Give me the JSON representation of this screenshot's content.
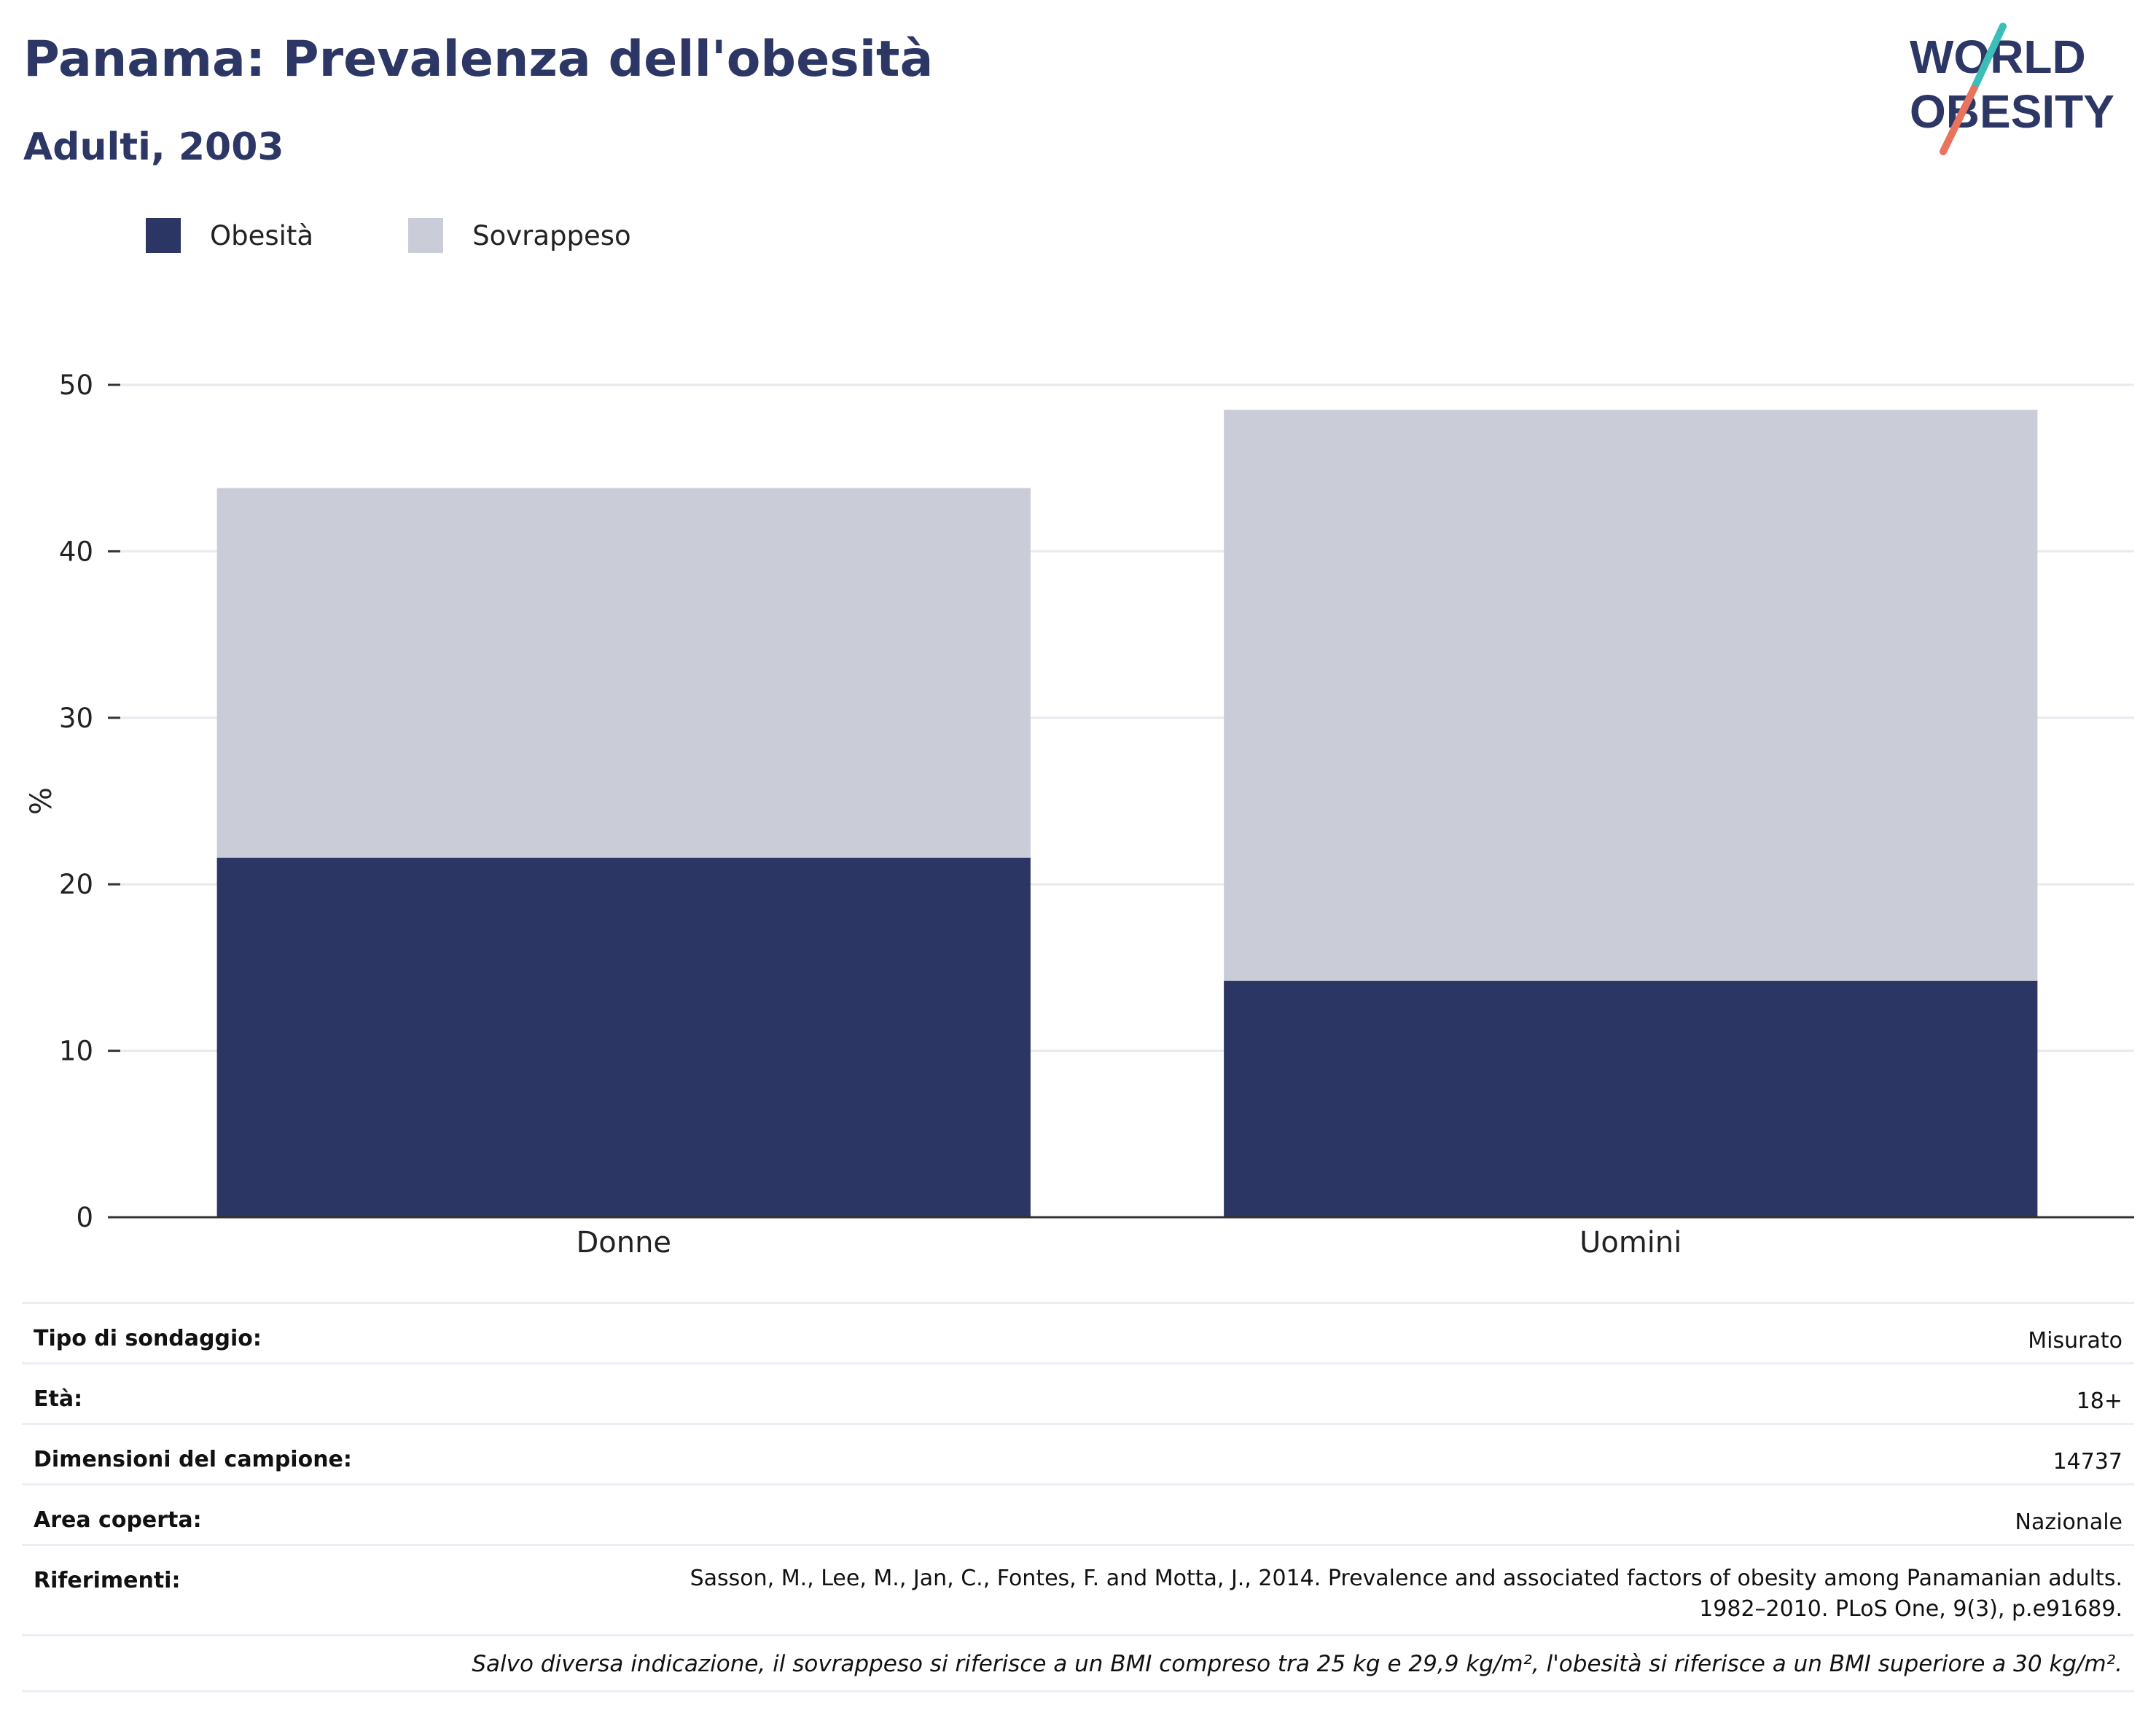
{
  "header": {
    "title": "Panama: Prevalenza dell'obesità",
    "subtitle": "Adulti, 2003"
  },
  "logo": {
    "line1": "WORLD",
    "line2": "OBESITY",
    "colors": [
      "#2d3766",
      "#3dbdb8",
      "#e8735f"
    ]
  },
  "legend": [
    {
      "label": "Obesità",
      "color": "#2b3664"
    },
    {
      "label": "Sovrappeso",
      "color": "#cacdd8"
    }
  ],
  "chart_data": {
    "type": "bar",
    "stacked": true,
    "categories": [
      "Donne",
      "Uomini"
    ],
    "series": [
      {
        "name": "Obesità",
        "values": [
          21.6,
          14.2
        ],
        "color": "#2b3664"
      },
      {
        "name": "Sovrappeso",
        "values": [
          22.2,
          34.3
        ],
        "color": "#cacdd8"
      }
    ],
    "ylabel": "%",
    "ylim": [
      0,
      50
    ],
    "yticks": [
      "0",
      "10",
      "20",
      "30",
      "40",
      "50"
    ],
    "grid": true,
    "legend_position": "top-left"
  },
  "info": {
    "survey_type": {
      "label": "Tipo di sondaggio:",
      "value": "Misurato"
    },
    "age": {
      "label": "Età:",
      "value": "18+"
    },
    "sample_size": {
      "label": "Dimensioni del campione:",
      "value": "14737"
    },
    "area": {
      "label": "Area coperta:",
      "value": "Nazionale"
    },
    "references": {
      "label": "Riferimenti:",
      "line1": "Sasson, M., Lee, M., Jan, C., Fontes, F. and Motta, J., 2014. Prevalence and associated factors of obesity among Panamanian adults.",
      "line2": "1982–2010. PLoS One, 9(3), p.e91689."
    },
    "footnote": "Salvo diversa indicazione, il sovrappeso si riferisce a un BMI compreso tra 25 kg e 29,9 kg/m², l'obesità si riferisce a un BMI superiore a 30 kg/m²."
  }
}
